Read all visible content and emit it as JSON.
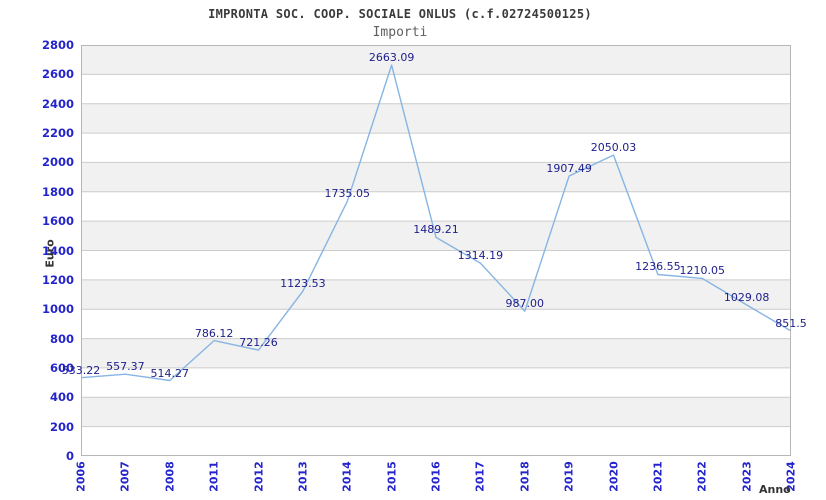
{
  "header": {
    "title": "IMPRONTA SOC. COOP. SOCIALE ONLUS (c.f.02724500125)",
    "subtitle": "Importi"
  },
  "chart_data": {
    "type": "line",
    "title": "IMPRONTA SOC. COOP. SOCIALE ONLUS (c.f.02724500125)",
    "subtitle": "Importi",
    "xlabel": "Anno",
    "ylabel": "Euro",
    "x": [
      "2006",
      "2007",
      "2008",
      "2011",
      "2012",
      "2013",
      "2014",
      "2015",
      "2016",
      "2017",
      "2018",
      "2019",
      "2020",
      "2021",
      "2022",
      "2023",
      "2024"
    ],
    "values": [
      533.22,
      557.37,
      514.27,
      786.12,
      721.26,
      1123.53,
      1735.05,
      2663.09,
      1489.21,
      1314.19,
      987.0,
      1907.49,
      2050.03,
      1236.55,
      1210.05,
      1029.08,
      851.5
    ],
    "point_labels": [
      "533.22",
      "557.37",
      "514.27",
      "786.12",
      "721.26",
      "1123.53",
      "1735.05",
      "2663.09",
      "1489.21",
      "1314.19",
      "987.00",
      "1907.49",
      "2050.03",
      "1236.55",
      "1210.05",
      "1029.08",
      "851.5"
    ],
    "ylim": [
      0,
      2800
    ],
    "ytick_step": 200,
    "yticks": [
      "0",
      "200",
      "400",
      "600",
      "800",
      "1000",
      "1200",
      "1400",
      "1600",
      "1800",
      "2000",
      "2200",
      "2400",
      "2600",
      "2800"
    ],
    "grid": "horizontal",
    "legend": "none",
    "colors": {
      "line": "#87b5e3",
      "tick_label": "#2424cc",
      "point_label": "#20208c",
      "band_gray": "#f1f1f1",
      "band_white": "#ffffff",
      "gridline": "#cccccc",
      "plot_border": "#b7b7b7",
      "title": "#3a3a3a",
      "subtitle": "#606060",
      "axis_title": "#333333"
    }
  }
}
